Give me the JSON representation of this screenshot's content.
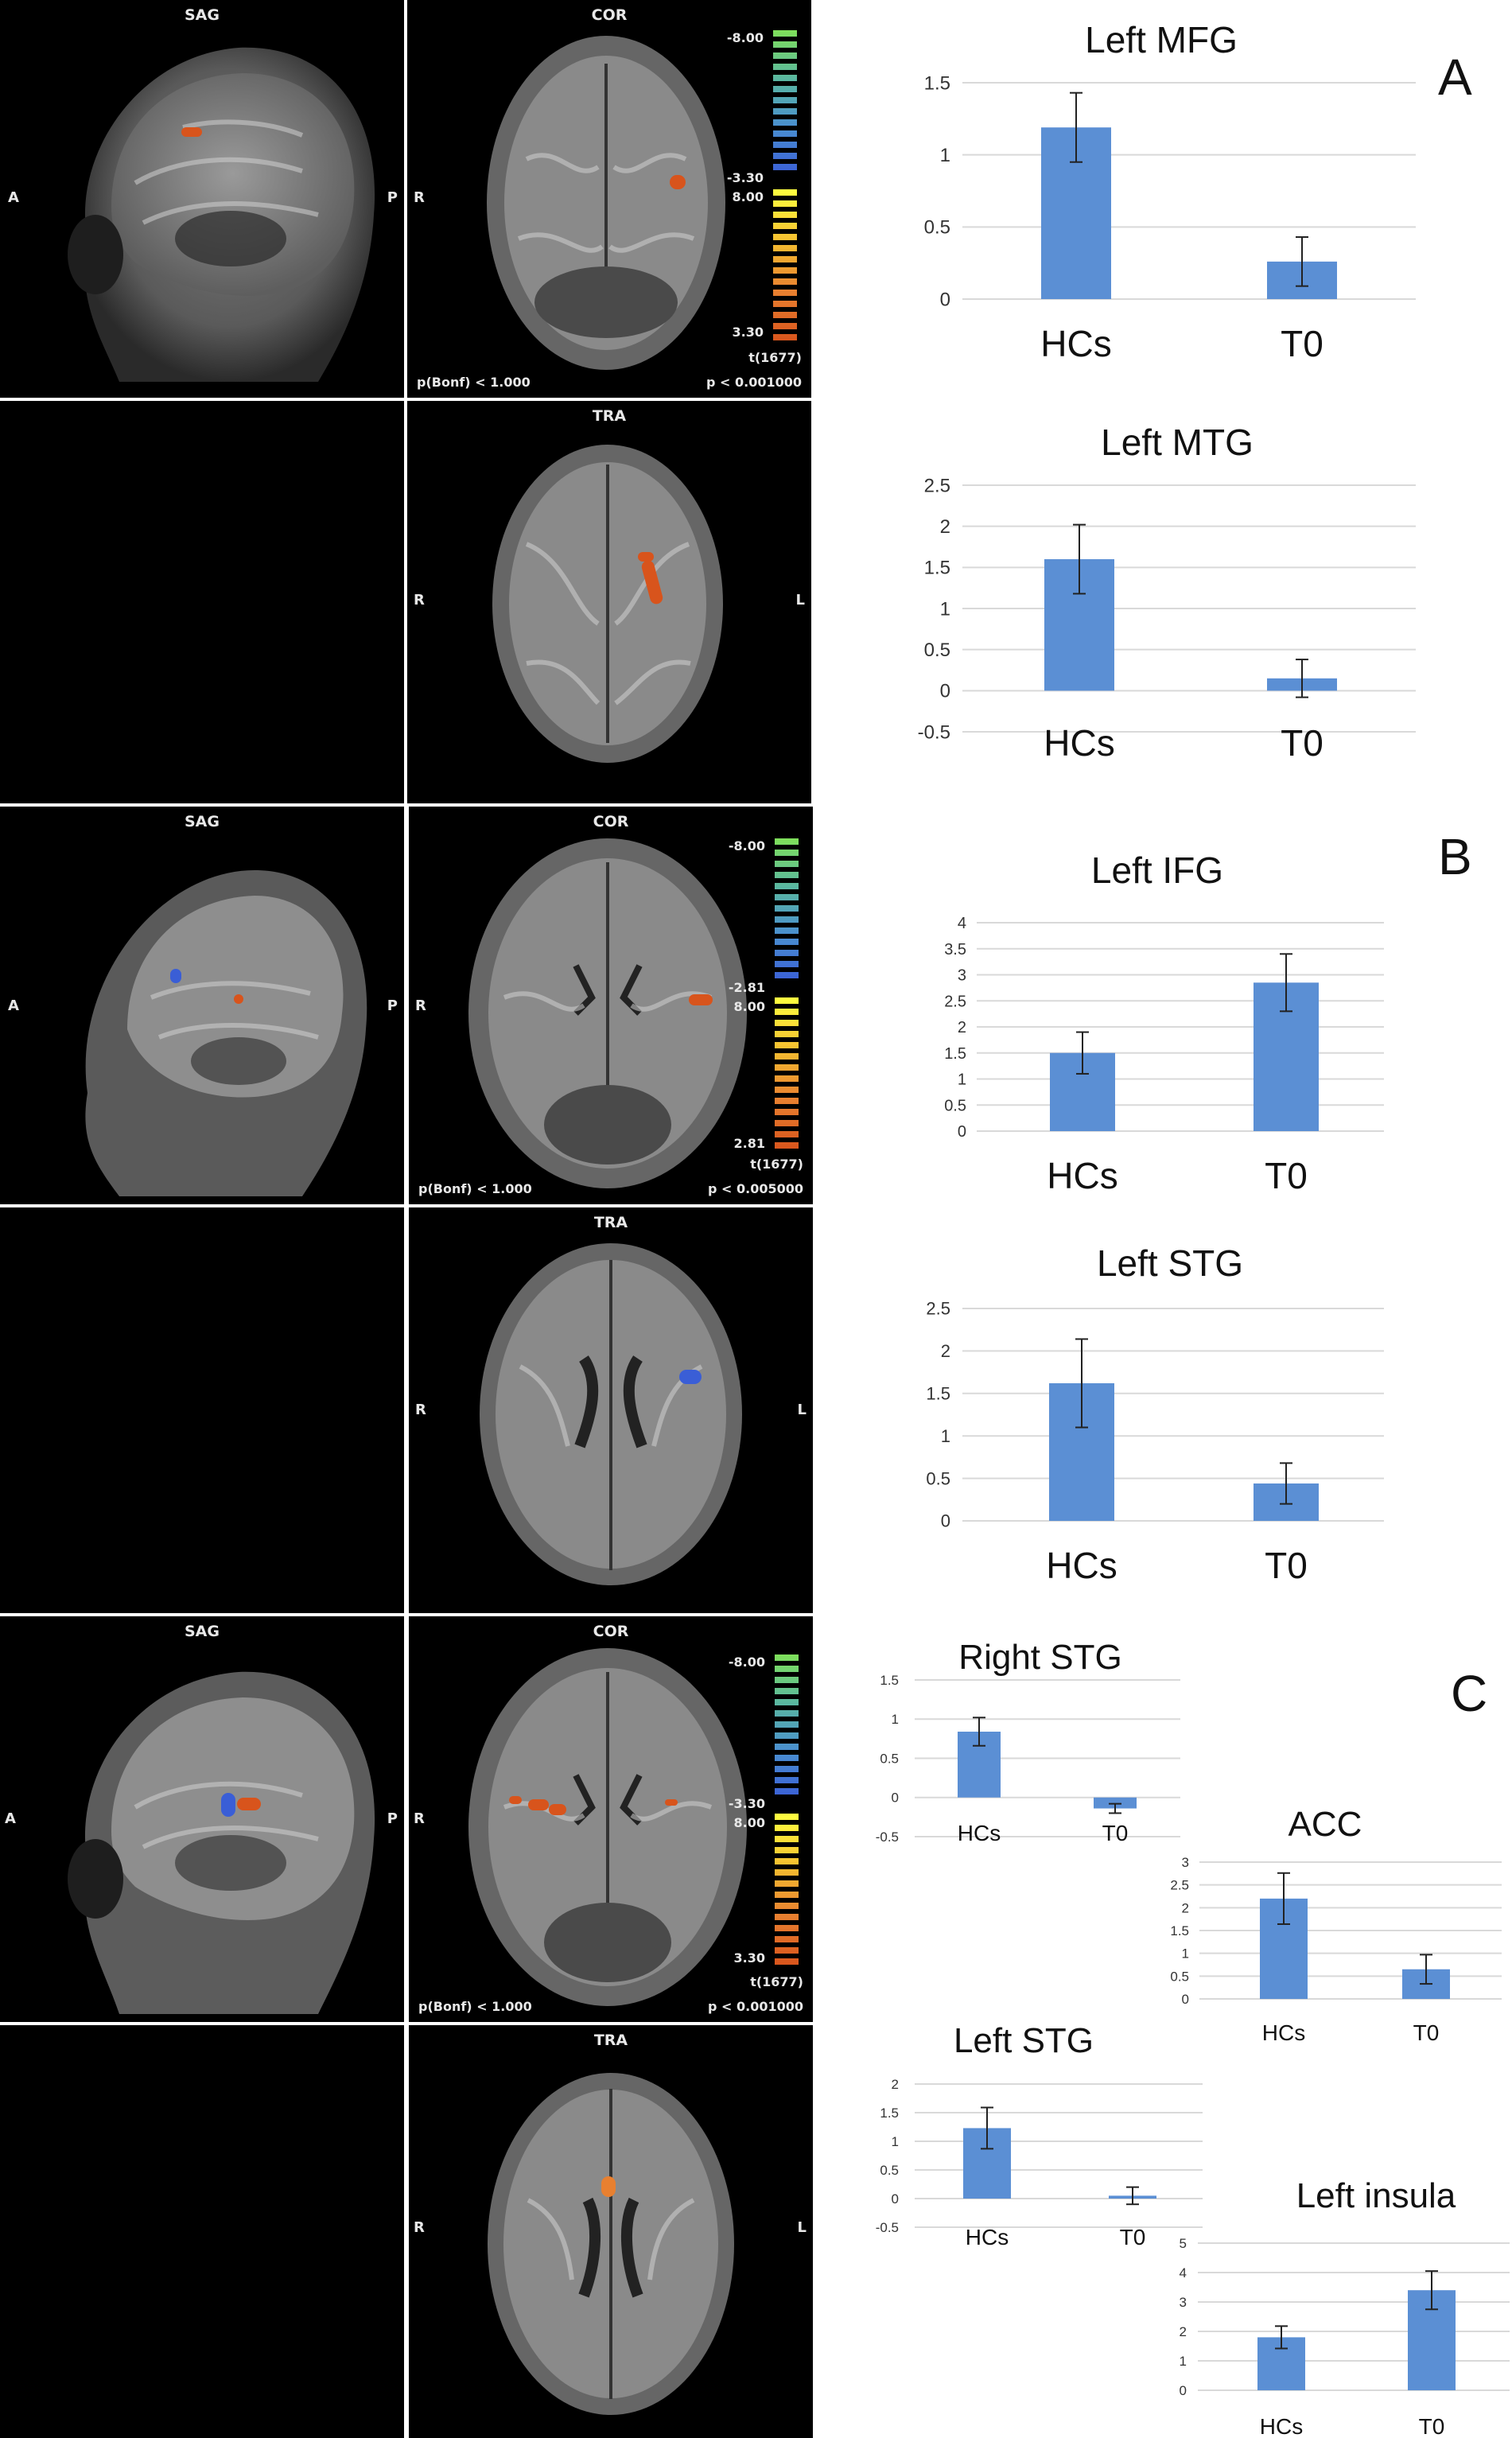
{
  "colors": {
    "bar": "#5b8fd4",
    "activation": "#d8541c",
    "deactivation": "#3a5ed6",
    "grid": "#d9d9d9"
  },
  "sections": [
    {
      "letter": "A",
      "views": {
        "sag": "SAG",
        "cor": "COR",
        "tra": "TRA",
        "dir_a": "A",
        "dir_p": "P",
        "dir_r": "R",
        "dir_l": "L",
        "bonf": "p(Bonf) < 1.000",
        "p": "p < 0.001000",
        "t": "t(1677)",
        "cb_top": "-8.00",
        "cb_neg": "-3.30",
        "cb_pos": "8.00",
        "cb_bottom": "3.30"
      }
    },
    {
      "letter": "B",
      "views": {
        "sag": "SAG",
        "cor": "COR",
        "tra": "TRA",
        "dir_a": "A",
        "dir_p": "P",
        "dir_r": "R",
        "dir_l": "L",
        "bonf": "p(Bonf) < 1.000",
        "p": "p < 0.005000",
        "t": "t(1677)",
        "cb_top": "-8.00",
        "cb_neg": "-2.81",
        "cb_pos": "8.00",
        "cb_bottom": "2.81"
      }
    },
    {
      "letter": "C",
      "views": {
        "sag": "SAG",
        "cor": "COR",
        "tra": "TRA",
        "dir_a": "A",
        "dir_p": "P",
        "dir_r": "R",
        "dir_l": "L",
        "bonf": "p(Bonf) < 1.000",
        "p": "p < 0.001000",
        "t": "t(1677)",
        "cb_top": "-8.00",
        "cb_neg": "-3.30",
        "cb_pos": "8.00",
        "cb_bottom": "3.30"
      }
    }
  ],
  "chart_data": [
    {
      "type": "bar",
      "title": "Left MFG",
      "categories": [
        "HCs",
        "T0"
      ],
      "values": [
        1.19,
        0.26
      ],
      "errors": [
        0.24,
        0.17
      ],
      "ylim": [
        0,
        1.5
      ],
      "yticks": [
        "0",
        "0.5",
        "1",
        "1.5"
      ],
      "ytick_values": [
        0,
        0.5,
        1,
        1.5
      ]
    },
    {
      "type": "bar",
      "title": "Left MTG",
      "categories": [
        "HCs",
        "T0"
      ],
      "values": [
        1.6,
        0.15
      ],
      "errors": [
        0.42,
        0.23
      ],
      "ylim": [
        -0.5,
        2.5
      ],
      "yticks": [
        "-0.5",
        "0",
        "0.5",
        "1",
        "1.5",
        "2",
        "2.5"
      ],
      "ytick_values": [
        -0.5,
        0,
        0.5,
        1,
        1.5,
        2,
        2.5
      ]
    },
    {
      "type": "bar",
      "title": "Left IFG",
      "categories": [
        "HCs",
        "T0"
      ],
      "values": [
        1.5,
        2.85
      ],
      "errors": [
        0.4,
        0.55
      ],
      "ylim": [
        0,
        4
      ],
      "yticks": [
        "0",
        "0.5",
        "1",
        "1.5",
        "2",
        "2.5",
        "3",
        "3.5",
        "4"
      ],
      "ytick_values": [
        0,
        0.5,
        1,
        1.5,
        2,
        2.5,
        3,
        3.5,
        4
      ]
    },
    {
      "type": "bar",
      "title": "Left STG",
      "categories": [
        "HCs",
        "T0"
      ],
      "values": [
        1.62,
        0.44
      ],
      "errors": [
        0.52,
        0.24
      ],
      "ylim": [
        0,
        2.5
      ],
      "yticks": [
        "0",
        "0.5",
        "1",
        "1.5",
        "2",
        "2.5"
      ],
      "ytick_values": [
        0,
        0.5,
        1,
        1.5,
        2,
        2.5
      ]
    },
    {
      "type": "bar",
      "title": "Right STG",
      "categories": [
        "HCs",
        "T0"
      ],
      "values": [
        0.84,
        -0.14
      ],
      "errors": [
        0.18,
        0.06
      ],
      "ylim": [
        -0.5,
        1.5
      ],
      "yticks": [
        "-0.5",
        "0",
        "0.5",
        "1",
        "1.5"
      ],
      "ytick_values": [
        -0.5,
        0,
        0.5,
        1,
        1.5
      ]
    },
    {
      "type": "bar",
      "title": "ACC",
      "categories": [
        "HCs",
        "T0"
      ],
      "values": [
        2.2,
        0.65
      ],
      "errors": [
        0.56,
        0.32
      ],
      "ylim": [
        0,
        3
      ],
      "yticks": [
        "0",
        "0.5",
        "1",
        "1.5",
        "2",
        "2.5",
        "3"
      ],
      "ytick_values": [
        0,
        0.5,
        1,
        1.5,
        2,
        2.5,
        3
      ]
    },
    {
      "type": "bar",
      "title": "Left STG",
      "categories": [
        "HCs",
        "T0"
      ],
      "values": [
        1.23,
        0.05
      ],
      "errors": [
        0.36,
        0.15
      ],
      "ylim": [
        -0.5,
        2
      ],
      "yticks": [
        "-0.5",
        "0",
        "0.5",
        "1",
        "1.5",
        "2"
      ],
      "ytick_values": [
        -0.5,
        0,
        0.5,
        1,
        1.5,
        2
      ]
    },
    {
      "type": "bar",
      "title": "Left insula",
      "categories": [
        "HCs",
        "T0"
      ],
      "values": [
        1.8,
        3.4
      ],
      "errors": [
        0.38,
        0.65
      ],
      "ylim": [
        0,
        5
      ],
      "yticks": [
        "0",
        "1",
        "2",
        "3",
        "4",
        "5"
      ],
      "ytick_values": [
        0,
        1,
        2,
        3,
        4,
        5
      ]
    }
  ]
}
